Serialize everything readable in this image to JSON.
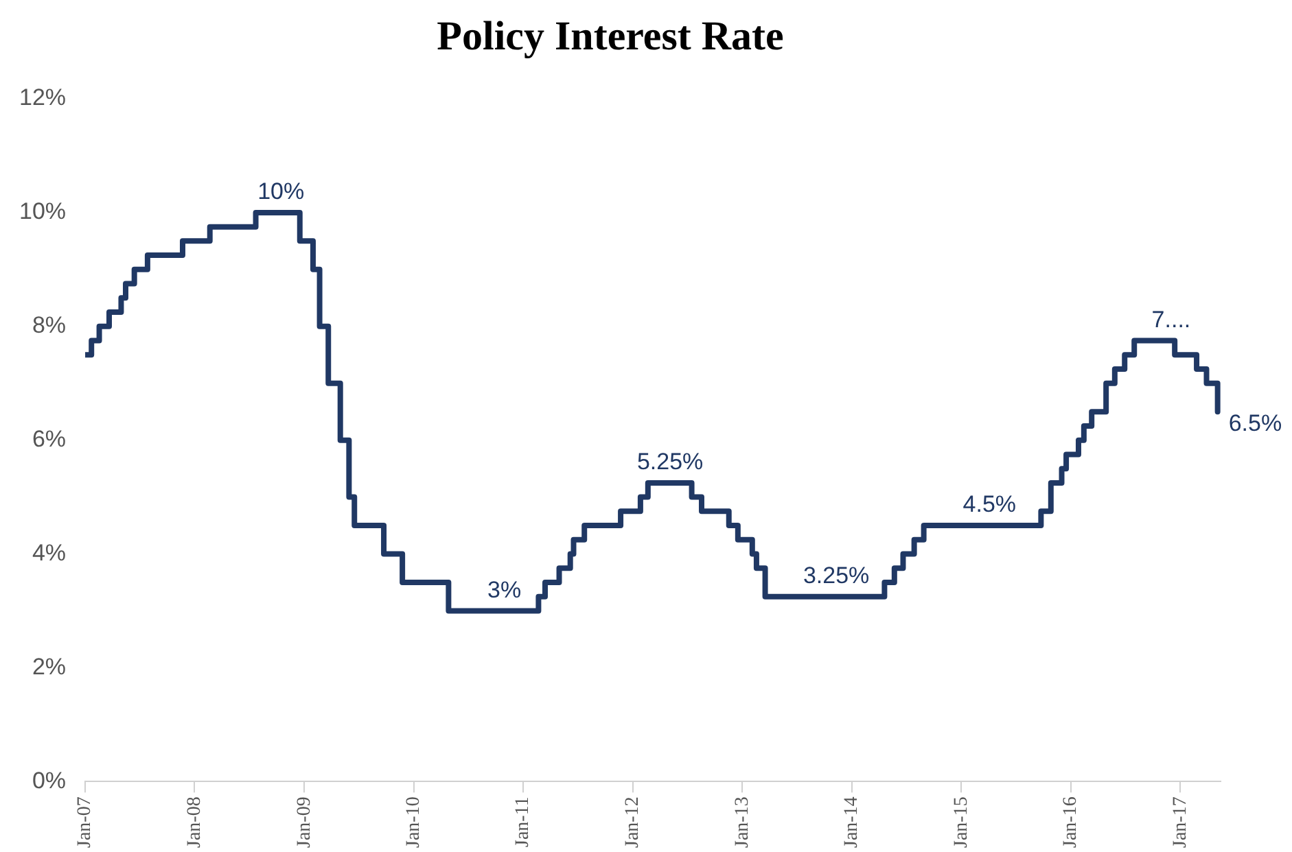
{
  "chart_data": {
    "type": "step",
    "title": "Policy Interest Rate",
    "x": [
      "2007-01-01",
      "2007-01-22",
      "2007-02-17",
      "2007-03-22",
      "2007-05-01",
      "2007-05-16",
      "2007-06-14",
      "2007-07-28",
      "2007-11-22",
      "2008-02-21",
      "2008-07-23",
      "2008-12-17",
      "2009-01-30",
      "2009-02-21",
      "2009-03-22",
      "2009-05-01",
      "2009-05-30",
      "2009-06-17",
      "2009-09-23",
      "2009-11-24",
      "2010-04-27",
      "2011-02-21",
      "2011-03-15",
      "2011-05-01",
      "2011-06-07",
      "2011-06-18",
      "2011-07-24",
      "2011-11-22",
      "2012-01-27",
      "2012-02-21",
      "2012-07-16",
      "2012-08-18",
      "2012-11-17",
      "2012-12-17",
      "2013-02-03",
      "2013-02-17",
      "2013-03-18",
      "2014-04-20",
      "2014-05-23",
      "2014-06-21",
      "2014-07-28",
      "2014-08-29",
      "2015-09-24",
      "2015-10-27",
      "2015-12-02",
      "2015-12-17",
      "2016-01-27",
      "2016-02-14",
      "2016-03-11",
      "2016-04-28",
      "2016-05-27",
      "2016-06-29",
      "2016-07-31",
      "2016-12-13",
      "2017-02-24",
      "2017-03-29",
      "2017-05-05"
    ],
    "series": [
      {
        "color": "#203864",
        "values": [
          7.5,
          7.75,
          8.0,
          8.25,
          8.5,
          8.75,
          9.0,
          9.25,
          9.5,
          9.75,
          10,
          9.5,
          9.0,
          8.0,
          7.0,
          6.0,
          5.0,
          4.5,
          4.0,
          3.5,
          3.0,
          3.25,
          3.5,
          3.75,
          4.0,
          4.25,
          4.5,
          4.75,
          5.0,
          5.25,
          5.0,
          4.75,
          4.5,
          4.25,
          4.0,
          3.75,
          3.25,
          3.5,
          3.75,
          4.0,
          4.25,
          4.5,
          4.75,
          5.25,
          5.5,
          5.75,
          6.0,
          6.25,
          6.5,
          7.0,
          7.25,
          7.5,
          7.75,
          7.5,
          7.25,
          7.0,
          6.5
        ]
      }
    ],
    "ylim": [
      0,
      12
    ],
    "yticks": [
      {
        "value": 0,
        "label": "0%"
      },
      {
        "value": 2,
        "label": "2%"
      },
      {
        "value": 4,
        "label": "4%"
      },
      {
        "value": 6,
        "label": "6%"
      },
      {
        "value": 8,
        "label": "8%"
      },
      {
        "value": 10,
        "label": "10%"
      },
      {
        "value": 12,
        "label": "12%"
      }
    ],
    "xlim": [
      "2007-01-01",
      "2017-05-15"
    ],
    "xticks": [
      {
        "value": "2007-01-01",
        "label": "Jan-07"
      },
      {
        "value": "2008-01-01",
        "label": "Jan-08"
      },
      {
        "value": "2009-01-01",
        "label": "Jan-09"
      },
      {
        "value": "2010-01-01",
        "label": "Jan-10"
      },
      {
        "value": "2011-01-01",
        "label": "Jan-11"
      },
      {
        "value": "2012-01-01",
        "label": "Jan-12"
      },
      {
        "value": "2013-01-01",
        "label": "Jan-13"
      },
      {
        "value": "2014-01-01",
        "label": "Jan-14"
      },
      {
        "value": "2015-01-01",
        "label": "Jan-15"
      },
      {
        "value": "2016-01-01",
        "label": "Jan-16"
      },
      {
        "value": "2017-01-01",
        "label": "Jan-17"
      }
    ],
    "grid": false,
    "legend": false,
    "marker": "none",
    "line_style": "solid",
    "annotations": [
      {
        "text": "10%",
        "x": "2008-10-15",
        "y": 10
      },
      {
        "text": "3%",
        "x": "2010-10-30",
        "y": 3
      },
      {
        "text": "5.25%",
        "x": "2012-05-05",
        "y": 5.25
      },
      {
        "text": "3.25%",
        "x": "2013-11-10",
        "y": 3.25
      },
      {
        "text": "4.5%",
        "x": "2015-04-05",
        "y": 4.5
      },
      {
        "text": "7....",
        "x": "2016-12-01",
        "y": 7.75
      },
      {
        "text": "6.5%",
        "x": "2017-05-05",
        "y": 6.5
      }
    ]
  }
}
